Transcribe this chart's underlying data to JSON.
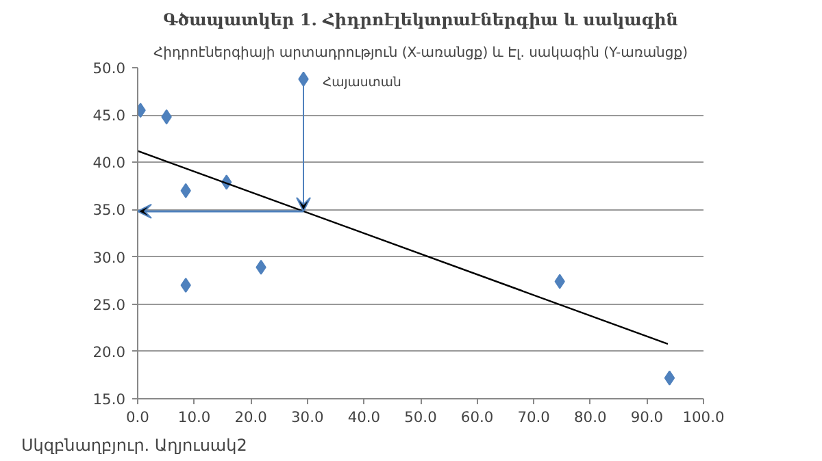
{
  "chart_data": {
    "type": "scatter",
    "title": "Գծապատկեր 1. Հիդրոէլեկտրաէներգիա և սակագին",
    "subtitle": "Հիդրոէներգիայի արտադրություն (X-առանցք) և Էլ. սակագին (Y-առանցք)",
    "annotations": [
      {
        "text": "Հայաստան",
        "x": 29.3,
        "y": 48.8
      },
      "Սկզբնաղբյուր. Աղյուսակ2"
    ],
    "marker": "diamond",
    "grid": "y",
    "xlim": [
      0,
      100
    ],
    "xticks": [
      {
        "value": 0,
        "label": "0.0"
      },
      {
        "value": 10,
        "label": "10.0"
      },
      {
        "value": 20,
        "label": "20.0"
      },
      {
        "value": 30,
        "label": "30.0"
      },
      {
        "value": 40,
        "label": "40.0"
      },
      {
        "value": 50,
        "label": "50.0"
      },
      {
        "value": 60,
        "label": "60.0"
      },
      {
        "value": 70,
        "label": "70.0"
      },
      {
        "value": 80,
        "label": "80.0"
      },
      {
        "value": 90,
        "label": "90.0"
      },
      {
        "value": 100,
        "label": "100.0"
      }
    ],
    "ylim": [
      15,
      50
    ],
    "yticks": [
      {
        "value": 15,
        "label": "15.0"
      },
      {
        "value": 20,
        "label": "20.0"
      },
      {
        "value": 25,
        "label": "25.0"
      },
      {
        "value": 30,
        "label": "30.0"
      },
      {
        "value": 35,
        "label": "35.0"
      },
      {
        "value": 40,
        "label": "40.0"
      },
      {
        "value": 45,
        "label": "45.0"
      },
      {
        "value": 50,
        "label": "50.0"
      }
    ],
    "series": [
      {
        "color": "#4f81bd",
        "x": [
          0.5,
          5.1,
          8.5,
          8.5,
          15.7,
          21.8,
          29.3,
          74.6,
          94.0
        ],
        "values": [
          45.5,
          44.8,
          37.0,
          27.0,
          37.9,
          28.9,
          48.8,
          27.4,
          17.2
        ]
      },
      {
        "type": "line",
        "color": "#000000",
        "marker": "none",
        "x": [
          0,
          93.7
        ],
        "values": [
          41.2,
          20.8
        ]
      }
    ]
  }
}
